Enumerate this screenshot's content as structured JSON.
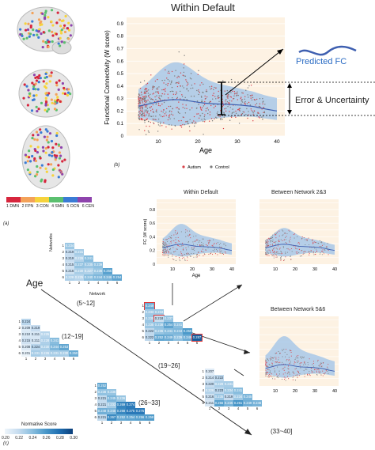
{
  "panel_labels": {
    "a": "(a)",
    "b": "(b)",
    "c": "(c)"
  },
  "main_chart": {
    "title": "Within Default",
    "xlabel": "Age",
    "ylabel": "Functional Connectivity (W score)",
    "xticks": [
      "10",
      "20",
      "30",
      "40"
    ],
    "yticks": [
      "0",
      "0.1",
      "0.2",
      "0.3",
      "0.4",
      "0.5",
      "0.6",
      "0.7",
      "0.8",
      "0.9"
    ],
    "legend": [
      "Autism",
      "Control"
    ],
    "colors": {
      "autism": "#d9424a",
      "control": "#7b7b7b",
      "band": "#9cc2e8",
      "line": "#3e5fb0",
      "bg": "#fdf2e3"
    }
  },
  "annotations": {
    "predicted": "Predicted FC",
    "error": "Error & Uncertainty"
  },
  "networks": {
    "labels": [
      "1 DMN",
      "2 FPN",
      "3 CON",
      "4 SMN",
      "5 OCN",
      "6 CEN"
    ],
    "colors": [
      "#d7263d",
      "#f4a259",
      "#f6d33c",
      "#5bc06f",
      "#3a7bd5",
      "#8e44ad"
    ]
  },
  "small_charts": [
    {
      "title": "Within Default",
      "ylabel": "FC (W score)",
      "xlabel": "Age",
      "xticks": [
        "10",
        "20",
        "30",
        "40"
      ],
      "yticks": [
        "0",
        "0.2",
        "0.4",
        "0.6",
        "0.8"
      ]
    },
    {
      "title": "Between Network 2&3",
      "xticks": [
        "10",
        "20",
        "30",
        "40"
      ]
    },
    {
      "title": "Between Network 5&6",
      "xticks": [
        "10",
        "20",
        "30",
        "40"
      ]
    }
  ],
  "age_label": "Age",
  "matrix_axis": {
    "row": "Networks",
    "col": "Network"
  },
  "matrices": [
    {
      "range": "(5~12]",
      "rows": [
        [
          "0.234"
        ],
        [
          "0.219",
          "0.231"
        ],
        [
          "0.219",
          "0.226",
          "0.241"
        ],
        [
          "0.215",
          "0.237",
          "0.235",
          "0.239"
        ],
        [
          "0.216",
          "0.230",
          "0.227",
          "0.236",
          "0.255"
        ],
        [
          "0.228",
          "0.225",
          "0.240",
          "0.244",
          "0.246",
          "0.254"
        ]
      ]
    },
    {
      "range": "(12~19]",
      "rows": [
        [
          "0.224"
        ],
        [
          "0.209",
          "0.219"
        ],
        [
          "0.210",
          "0.211",
          "0.225"
        ],
        [
          "0.215",
          "0.211",
          "0.228",
          "0.241"
        ],
        [
          "0.208",
          "0.224",
          "0.230",
          "0.244",
          "0.253"
        ],
        [
          "0.201",
          "0.231",
          "0.226",
          "0.231",
          "0.230",
          "0.250"
        ]
      ]
    },
    {
      "range": "(19~26]",
      "rows": [
        [
          "0.249"
        ],
        [
          "0.233",
          "0.234"
        ],
        [
          "0.235",
          "0.218",
          "0.237"
        ],
        [
          "0.235",
          "0.238",
          "0.254",
          "0.241"
        ],
        [
          "0.222",
          "0.236",
          "0.241",
          "0.244",
          "0.259"
        ],
        [
          "0.222",
          "0.252",
          "0.249",
          "0.239",
          "0.249",
          "0.287"
        ]
      ]
    },
    {
      "range": "(26~33]",
      "rows": [
        [
          "0.252"
        ],
        [
          "0.238",
          "0.236"
        ],
        [
          "0.221",
          "0.245",
          "0.236"
        ],
        [
          "0.221",
          "0.232",
          "0.269",
          "0.274"
        ],
        [
          "0.248",
          "0.245",
          "0.268",
          "0.275",
          "0.275"
        ],
        [
          "0.221",
          "0.267",
          "0.252",
          "0.254",
          "0.256",
          "0.258"
        ]
      ]
    },
    {
      "range": "(33~40]",
      "rows": [
        [
          "0.207"
        ],
        [
          "0.214",
          "0.222"
        ],
        [
          "0.220",
          "0.229",
          "0.231"
        ],
        [
          "0.226",
          "0.223",
          "0.234",
          "0.241"
        ],
        [
          "0.216",
          "0.235",
          "0.219",
          "0.234",
          "0.245"
        ],
        [
          "0.211",
          "0.256",
          "0.246",
          "0.261",
          "0.249",
          "0.246"
        ]
      ]
    }
  ],
  "colorbar": {
    "title": "Normative Score",
    "ticks": [
      "0.20",
      "0.22",
      "0.24",
      "0.26",
      "0.28",
      "0.30"
    ]
  }
}
